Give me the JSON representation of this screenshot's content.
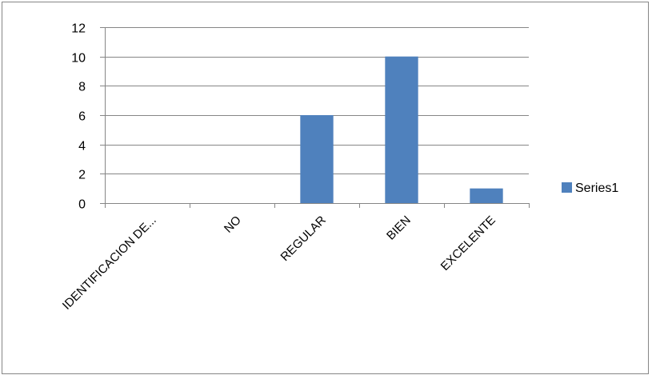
{
  "chart_data": {
    "type": "bar",
    "title": "",
    "xlabel": "",
    "ylabel": "",
    "categories": [
      "IDENTIFICACION DE...",
      "NO",
      "REGULAR",
      "BIEN",
      "EXCELENTE"
    ],
    "series": [
      {
        "name": "Series1",
        "color": "#4f81bd",
        "values": [
          0,
          0,
          6,
          10,
          1
        ]
      }
    ],
    "ylim": [
      0,
      12
    ],
    "yticks": [
      0,
      2,
      4,
      6,
      8,
      10,
      12
    ],
    "grid": true,
    "legend": "right",
    "xtick_rotation": -45
  }
}
